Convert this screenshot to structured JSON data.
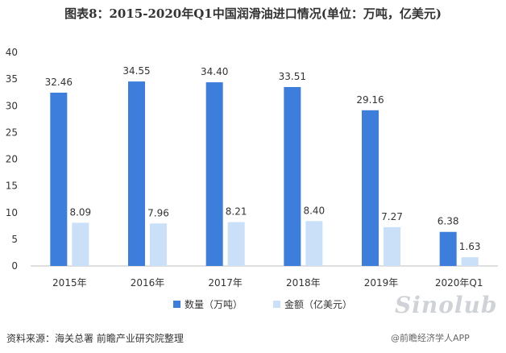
{
  "chart_data": {
    "type": "bar",
    "title": "图表8：2015-2020年Q1中国润滑油进口情况(单位：万吨，亿美元)",
    "categories": [
      "2015年",
      "2016年",
      "2017年",
      "2018年",
      "2019年",
      "2020年Q1"
    ],
    "series": [
      {
        "name": "数量（万吨）",
        "values": [
          32.46,
          34.55,
          34.4,
          33.51,
          29.16,
          6.38
        ],
        "color": "#3d7ddc"
      },
      {
        "name": "金额（亿美元）",
        "values": [
          8.09,
          7.96,
          8.21,
          8.4,
          7.27,
          1.63
        ],
        "color": "#c9e0f8"
      }
    ],
    "value_labels": [
      [
        "32.46",
        "34.55",
        "34.40",
        "33.51",
        "29.16",
        "6.38"
      ],
      [
        "8.09",
        "7.96",
        "8.21",
        "8.40",
        "7.27",
        "1.63"
      ]
    ],
    "ylim": [
      0,
      40
    ],
    "yticks": [
      0,
      5,
      10,
      15,
      20,
      25,
      30,
      35,
      40
    ],
    "legend_position": "bottom",
    "grid": false
  },
  "source_text": "资料来源：海关总署 前瞻产业研究院整理",
  "credit_text": "@前瞻经济学人APP",
  "watermark_logo": "Sinolub"
}
